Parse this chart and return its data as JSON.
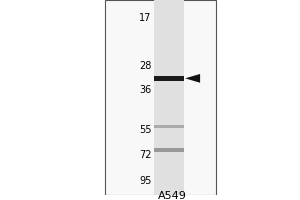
{
  "title": "A549",
  "mw_markers": [
    95,
    72,
    55,
    36,
    28,
    17
  ],
  "band_main_mw": 32,
  "band_faint1_mw": 68,
  "band_faint2_mw": 53,
  "background_color": "#ffffff",
  "panel_bg": "#f5f5f5",
  "lane_bg": "#e8e8e8",
  "band_color_main": "#1a1a1a",
  "band_color_faint1": "#999999",
  "band_color_faint2": "#aaaaaa",
  "arrowhead_color": "#111111",
  "title_fontsize": 8,
  "marker_fontsize": 7,
  "border_color": "#555555",
  "fig_bg": "#ffffff"
}
